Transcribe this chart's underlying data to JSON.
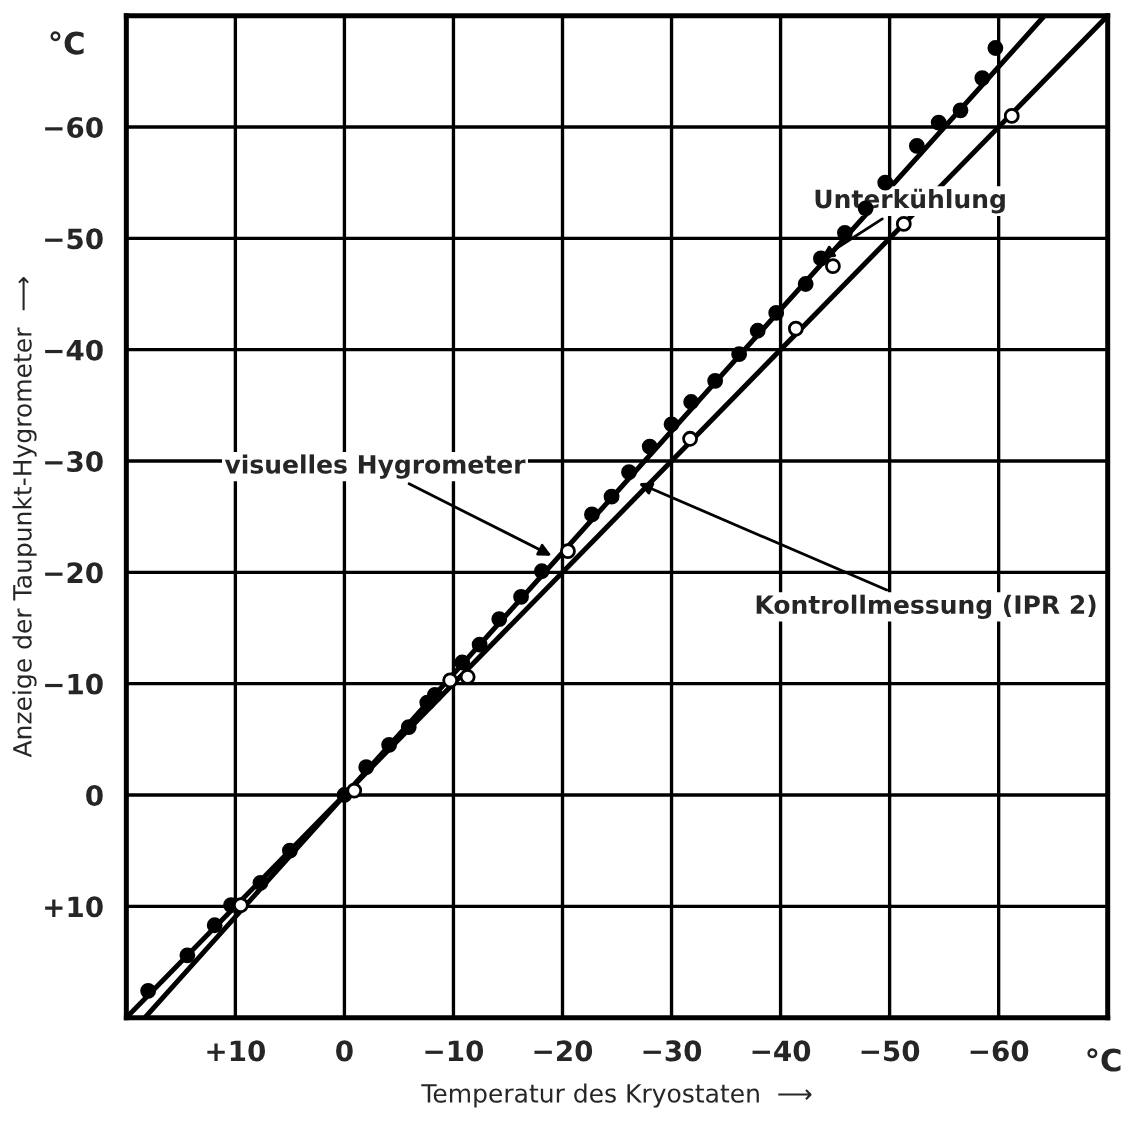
{
  "chart_data": {
    "type": "scatter",
    "xlabel": "Temperatur des Kryostaten  ⟶",
    "ylabel": "Anzeige der Taupunkt-Hygrometer  ⟶",
    "series": [
      {
        "type": "line",
        "color": "#000000",
        "marker": "none",
        "x": [
          18.3,
          -64.2
        ],
        "values": [
          20,
          -70
        ]
      },
      {
        "type": "line",
        "color": "#000000",
        "marker": "none",
        "x": [
          20,
          -70
        ],
        "values": [
          20,
          -70
        ]
      },
      {
        "color": "#000000",
        "marker": "circle",
        "x": [
          18,
          14.4,
          11.9,
          10.4,
          7.7,
          5,
          0,
          -2,
          -4.1,
          -5.9,
          -7.6,
          -8.3,
          -10.8,
          -12.4,
          -14.2,
          -16.2,
          -18.1,
          -22.7,
          -24.5,
          -26.1,
          -28,
          -30,
          -31.8,
          -34,
          -36.2,
          -37.9,
          -39.6,
          -42.3,
          -43.7,
          -45.9,
          -47.8,
          -49.6,
          -52.5,
          -54.5,
          -56.5,
          -58.5,
          -59.7
        ],
        "values": [
          17.6,
          14.4,
          11.7,
          9.9,
          7.9,
          5,
          0,
          -2.5,
          -4.5,
          -6.1,
          -8.3,
          -9,
          -11.9,
          -13.5,
          -15.8,
          -17.8,
          -20.1,
          -25.2,
          -26.8,
          -29,
          -31.3,
          -33.3,
          -35.3,
          -37.2,
          -39.6,
          -41.7,
          -43.3,
          -45.9,
          -48.2,
          -50.5,
          -52.7,
          -55,
          -58.3,
          -60.4,
          -61.5,
          -64.4,
          -67.1
        ]
      },
      {
        "color": "#ffffff",
        "marker": "circle",
        "x": [
          9.5,
          -0.9,
          -9.7,
          -11.3,
          -20.5,
          -31.7,
          -41.4,
          -44.8,
          -51.3,
          -61.2
        ],
        "values": [
          9.9,
          -0.4,
          -10.3,
          -10.6,
          -21.9,
          -32,
          -41.9,
          -47.5,
          -51.3,
          -61
        ]
      }
    ],
    "annotations": [
      {
        "text": "Unterkühlung",
        "x": -43.7,
        "y": -48.2
      },
      {
        "text": "visuelles Hygrometer",
        "x": -19,
        "y": -21.5
      },
      {
        "text": "Kontrollmessung (IPR 2)",
        "x": -27,
        "y": -28
      },
      "°C",
      "°C"
    ],
    "xlim": [
      20,
      -70
    ],
    "ylim": [
      20,
      -70
    ],
    "xticks": [
      {
        "value": 10,
        "label": "+10"
      },
      0,
      {
        "value": -10,
        "label": "−10"
      },
      {
        "value": -20,
        "label": "−20"
      },
      {
        "value": -30,
        "label": "−30"
      },
      {
        "value": -40,
        "label": "−40"
      },
      {
        "value": -50,
        "label": "−50"
      },
      {
        "value": -60,
        "label": "−60"
      }
    ],
    "yticks": [
      {
        "value": 10,
        "label": "+10"
      },
      0,
      {
        "value": -10,
        "label": "−10"
      },
      {
        "value": -20,
        "label": "−20"
      },
      {
        "value": -30,
        "label": "−30"
      },
      {
        "value": -40,
        "label": "−40"
      },
      {
        "value": -50,
        "label": "−50"
      },
      {
        "value": -60,
        "label": "−60"
      }
    ],
    "grid": true,
    "legend": false
  }
}
